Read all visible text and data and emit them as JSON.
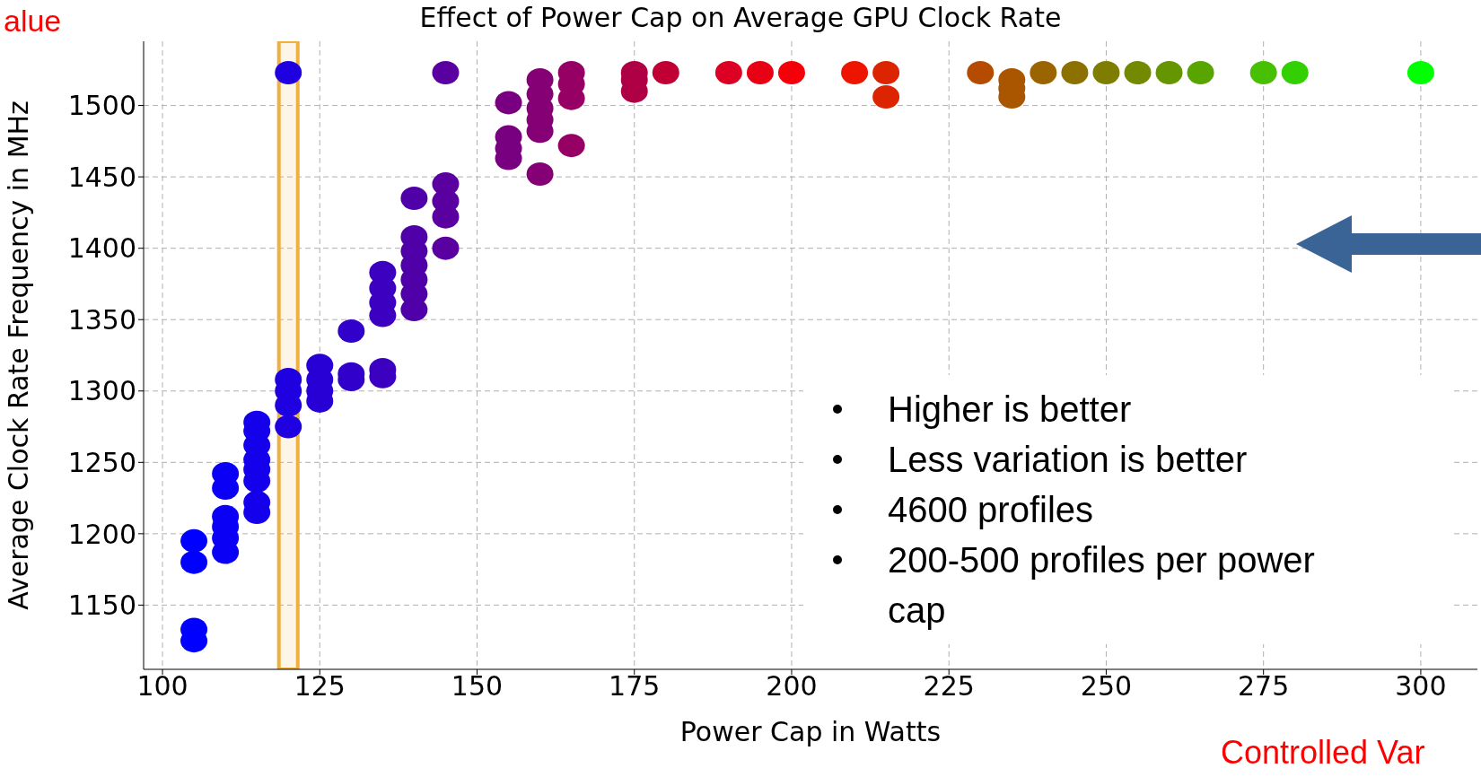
{
  "chart_data": {
    "type": "scatter",
    "title": "Effect of Power Cap on Average GPU Clock Rate",
    "xlabel": "Power Cap in Watts",
    "ylabel": "Average Clock Rate Frequency in MHz",
    "x": [
      105,
      105,
      105,
      105,
      110,
      110,
      110,
      110,
      110,
      110,
      115,
      115,
      115,
      115,
      115,
      115,
      115,
      115,
      120,
      120,
      120,
      120,
      120,
      125,
      125,
      125,
      125,
      130,
      130,
      130,
      135,
      135,
      135,
      135,
      135,
      135,
      140,
      140,
      140,
      140,
      140,
      140,
      140,
      145,
      145,
      145,
      145,
      145,
      155,
      155,
      155,
      155,
      160,
      160,
      160,
      160,
      160,
      160,
      165,
      165,
      165,
      165,
      175,
      175,
      175,
      180,
      190,
      195,
      200,
      210,
      215,
      215,
      230,
      235,
      235,
      235,
      240,
      245,
      250,
      255,
      260,
      265,
      275,
      280,
      300
    ],
    "values": [
      1195,
      1180,
      1133,
      1125,
      1242,
      1232,
      1212,
      1205,
      1197,
      1187,
      1278,
      1272,
      1262,
      1252,
      1245,
      1237,
      1222,
      1215,
      1523,
      1308,
      1300,
      1290,
      1275,
      1318,
      1308,
      1300,
      1293,
      1342,
      1312,
      1308,
      1383,
      1372,
      1362,
      1353,
      1315,
      1310,
      1435,
      1408,
      1398,
      1388,
      1378,
      1368,
      1357,
      1523,
      1445,
      1433,
      1422,
      1400,
      1502,
      1478,
      1470,
      1463,
      1518,
      1508,
      1498,
      1490,
      1482,
      1452,
      1523,
      1515,
      1505,
      1472,
      1523,
      1518,
      1510,
      1523,
      1523,
      1523,
      1523,
      1523,
      1523,
      1506,
      1523,
      1518,
      1512,
      1506,
      1523,
      1523,
      1523,
      1523,
      1523,
      1523,
      1523,
      1523,
      1523
    ],
    "colors": [
      "#0000ff",
      "#0000ff",
      "#0000ff",
      "#0000ff",
      "#0a00f5",
      "#0a00f5",
      "#0a00f5",
      "#0a00f5",
      "#0a00f5",
      "#0a00f5",
      "#1400ea",
      "#1400ea",
      "#1400ea",
      "#1400ea",
      "#1400ea",
      "#1400ea",
      "#1400ea",
      "#1400ea",
      "#1e00e0",
      "#1e00e0",
      "#1e00e0",
      "#1e00e0",
      "#1e00e0",
      "#2800d5",
      "#2800d5",
      "#2800d5",
      "#2800d5",
      "#3200cb",
      "#3200cb",
      "#3200cb",
      "#3c00c0",
      "#3c00c0",
      "#3c00c0",
      "#3c00c0",
      "#3c00c0",
      "#3c00c0",
      "#5000a8",
      "#5000a8",
      "#5000a8",
      "#5000a8",
      "#5000a8",
      "#5000a8",
      "#5000a8",
      "#5a00a0",
      "#5a00a0",
      "#5a00a0",
      "#5a00a0",
      "#5a00a0",
      "#780080",
      "#780080",
      "#780080",
      "#780080",
      "#860075",
      "#860075",
      "#860075",
      "#860075",
      "#860075",
      "#860075",
      "#960065",
      "#960065",
      "#960065",
      "#960065",
      "#b00045",
      "#b00045",
      "#b00045",
      "#c00035",
      "#dc0025",
      "#e80015",
      "#f50008",
      "#ee1500",
      "#dc2500",
      "#dc2500",
      "#b44b00",
      "#aa5500",
      "#aa5500",
      "#aa5500",
      "#9a6500",
      "#8c7000",
      "#7e7d00",
      "#738a00",
      "#659500",
      "#58a500",
      "#46c000",
      "#32d000",
      "#00ff00"
    ],
    "xlim": [
      97,
      309
    ],
    "xticks": [
      100,
      125,
      150,
      175,
      200,
      225,
      250,
      275,
      300
    ],
    "ylim": [
      1105,
      1545
    ],
    "yticks": [
      1150,
      1200,
      1250,
      1300,
      1350,
      1400,
      1450,
      1500
    ],
    "grid": true,
    "marker": "circle",
    "bands": [
      {
        "axis": "x",
        "from": 118.5,
        "to": 121.5,
        "color": "#f0b040"
      }
    ],
    "annotations": [
      "alue",
      "Controlled Var",
      "Higher is better",
      "Less variation is better",
      "4600 profiles",
      "200-500 profiles per power cap"
    ]
  }
}
